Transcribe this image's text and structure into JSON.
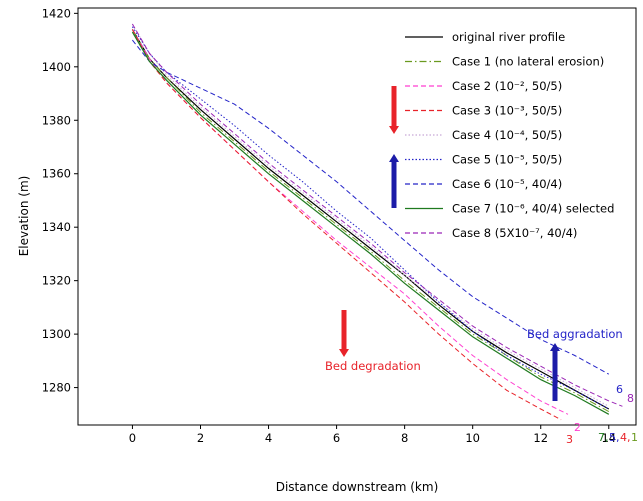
{
  "chart_data": {
    "type": "line",
    "xlabel": "Distance downstream (km)",
    "ylabel": "Elevation (m)",
    "xlim": [
      -1.6,
      14.8
    ],
    "ylim": [
      1266,
      1422
    ],
    "xticks": [
      0,
      2,
      4,
      6,
      8,
      10,
      12,
      14
    ],
    "yticks": [
      1280,
      1300,
      1320,
      1340,
      1360,
      1380,
      1400,
      1420
    ],
    "grid": false,
    "legend_position": "top-right",
    "series": [
      {
        "name": "original river profile",
        "color": "#000000",
        "dash": "solid",
        "x": [
          0,
          0.5,
          1,
          2,
          3,
          4,
          5,
          6,
          7,
          8,
          9,
          10,
          11,
          12,
          13,
          14
        ],
        "y": [
          1414,
          1403,
          1396,
          1384,
          1373,
          1362,
          1352,
          1342,
          1332,
          1322,
          1311,
          1301,
          1293,
          1286,
          1279,
          1272
        ]
      },
      {
        "name": "Case 1 (no lateral erosion)",
        "color": "#6a9a1f",
        "dash": "dashdot",
        "x": [
          0,
          0.5,
          1,
          2,
          3,
          4,
          5,
          6,
          7,
          8,
          9,
          10,
          11,
          12,
          13,
          14
        ],
        "y": [
          1414,
          1403,
          1396,
          1383,
          1372,
          1361,
          1351,
          1341,
          1331,
          1320,
          1310,
          1300,
          1292,
          1284,
          1278,
          1271
        ]
      },
      {
        "name": "Case 2 (10⁻², 50/5)",
        "color": "#ff3fd0",
        "dash": "dash",
        "x": [
          0,
          0.5,
          1,
          2,
          3,
          4,
          5,
          6,
          7,
          8,
          9,
          10,
          11,
          12,
          12.8
        ],
        "y": [
          1414,
          1403,
          1394,
          1381,
          1369,
          1357,
          1346,
          1335,
          1325,
          1315,
          1303,
          1292,
          1283,
          1275,
          1270
        ]
      },
      {
        "name": "Case 3 (10⁻³, 50/5)",
        "color": "#e8232a",
        "dash": "dash",
        "x": [
          0,
          0.5,
          1,
          2,
          3,
          4,
          5,
          6,
          7,
          8,
          9,
          10,
          11,
          12,
          12.6
        ],
        "y": [
          1414,
          1402,
          1394,
          1381,
          1369,
          1357,
          1345,
          1334,
          1323,
          1312,
          1300,
          1289,
          1279,
          1272,
          1268
        ]
      },
      {
        "name": "Case 4 (10⁻⁴, 50/5)",
        "color": "#c7a8d6",
        "dash": "dot",
        "x": [
          0,
          0.5,
          1,
          2,
          3,
          4,
          5,
          6,
          7,
          8,
          9,
          10,
          11,
          12,
          13,
          14
        ],
        "y": [
          1416,
          1405,
          1397,
          1385,
          1374,
          1363,
          1353,
          1343,
          1333,
          1322,
          1312,
          1302,
          1294,
          1287,
          1280,
          1273
        ]
      },
      {
        "name": "Case 5 (10⁻⁵, 50/5)",
        "color": "#2424c8",
        "dash": "dot",
        "x": [
          0,
          0.5,
          1,
          2,
          3,
          4,
          5,
          6,
          7,
          8,
          9,
          10,
          11,
          12,
          13,
          14
        ],
        "y": [
          1415,
          1405,
          1398,
          1388,
          1378,
          1367,
          1357,
          1346,
          1336,
          1324,
          1312,
          1301,
          1292,
          1285,
          1279,
          1272
        ]
      },
      {
        "name": "Case 6 (10⁻⁵, 40/4)",
        "color": "#2424c8",
        "dash": "dash",
        "x": [
          0,
          0.5,
          1,
          2,
          3,
          4,
          5,
          6,
          7,
          8,
          9,
          10,
          11,
          12,
          13,
          14
        ],
        "y": [
          1410,
          1402,
          1398,
          1392,
          1386,
          1377,
          1367,
          1357,
          1346,
          1335,
          1324,
          1314,
          1306,
          1298,
          1292,
          1285
        ]
      },
      {
        "name": "Case 7 (10⁻⁶, 40/4) selected",
        "color": "#1f7a1f",
        "dash": "solid",
        "x": [
          0,
          0.5,
          1,
          2,
          3,
          4,
          5,
          6,
          7,
          8,
          9,
          10,
          11,
          12,
          13,
          14
        ],
        "y": [
          1413,
          1402,
          1395,
          1382,
          1371,
          1360,
          1350,
          1340,
          1330,
          1319,
          1309,
          1299,
          1291,
          1283,
          1277,
          1270
        ]
      },
      {
        "name": "Case 8 (5X10⁻⁷, 40/4)",
        "color": "#9b26b6",
        "dash": "dash",
        "x": [
          0,
          0.5,
          1,
          2,
          3,
          4,
          5,
          6,
          7,
          8,
          9,
          10,
          11,
          12,
          13,
          14,
          14.4
        ],
        "y": [
          1416,
          1405,
          1398,
          1386,
          1375,
          1364,
          1354,
          1344,
          1334,
          1323,
          1313,
          1303,
          1295,
          1288,
          1281,
          1275,
          1273
        ]
      }
    ],
    "annotations": [
      {
        "text": "Bed aggradation",
        "color": "#2424c8"
      },
      {
        "text": "Bed degradation",
        "color": "#e8232a"
      }
    ],
    "end_labels": [
      {
        "text": "6",
        "color": "#2424c8"
      },
      {
        "text": "8",
        "color": "#9b26b6"
      },
      {
        "text": "2",
        "color": "#ff3fd0"
      },
      {
        "text": "3",
        "color": "#e8232a"
      },
      {
        "text": "7,",
        "color": "#1f7a1f"
      },
      {
        "text": "5,",
        "color": "#2424c8"
      },
      {
        "text": "4,",
        "color": "#e8232a"
      },
      {
        "text": "1",
        "color": "#6a9a1f"
      }
    ]
  }
}
